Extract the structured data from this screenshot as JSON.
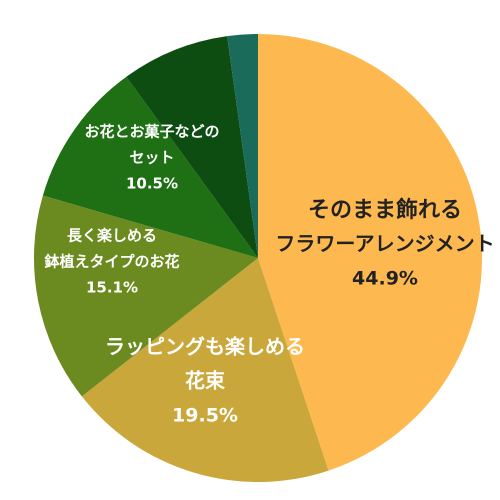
{
  "chart_data": {
    "type": "pie",
    "start_angle_deg": 0,
    "direction": "clockwise",
    "slices": [
      {
        "lines": [
          "そのまま飾れる",
          "フラワーアレンジメント"
        ],
        "value": 44.9,
        "value_label": "44.9%",
        "color": "#FDB94F",
        "text_color": "#222222"
      },
      {
        "lines": [
          "ラッピングも楽しめる",
          "花束"
        ],
        "value": 19.5,
        "value_label": "19.5%",
        "color": "#C9A73A",
        "text_color": "#ffffff"
      },
      {
        "lines": [
          "長く楽しめる",
          "鉢植えタイプのお花"
        ],
        "value": 15.1,
        "value_label": "15.1%",
        "color": "#6B8A1F",
        "text_color": "#ffffff"
      },
      {
        "lines": [
          "お花とお菓子などの",
          "セット"
        ],
        "value": 10.5,
        "value_label": "10.5%",
        "color": "#1F6F14",
        "text_color": "#ffffff"
      },
      {
        "lines": [],
        "value": 7.8,
        "value_label": "",
        "color": "#0E4D12",
        "text_color": "#ffffff"
      },
      {
        "lines": [],
        "value": 2.2,
        "value_label": "",
        "color": "#1A6B5A",
        "text_color": "#ffffff"
      }
    ]
  }
}
